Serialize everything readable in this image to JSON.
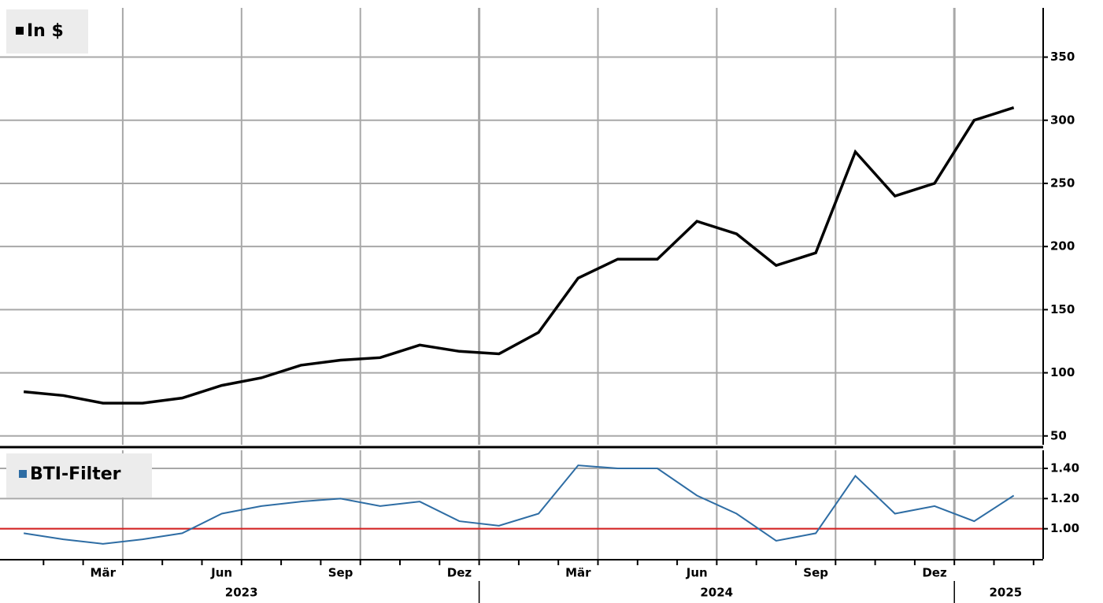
{
  "chart_data": [
    {
      "type": "line",
      "xlim": [
        "2023-01",
        "2025-02"
      ],
      "x": [
        "2023-01",
        "2023-02",
        "2023-03",
        "2023-04",
        "2023-05",
        "2023-06",
        "2023-07",
        "2023-08",
        "2023-09",
        "2023-10",
        "2023-11",
        "2023-12",
        "2024-01",
        "2024-02",
        "2024-03",
        "2024-04",
        "2024-05",
        "2024-06",
        "2024-07",
        "2024-08",
        "2024-09",
        "2024-10",
        "2024-11",
        "2024-12",
        "2025-01",
        "2025-02"
      ],
      "series": [
        {
          "name": "In $",
          "color": "#000000",
          "values": [
            85,
            82,
            76,
            76,
            80,
            90,
            96,
            106,
            110,
            112,
            122,
            117,
            115,
            132,
            175,
            190,
            190,
            220,
            210,
            185,
            195,
            275,
            240,
            250,
            300,
            310
          ]
        }
      ],
      "ylim": [
        43,
        389
      ],
      "yticks": [
        50,
        100,
        150,
        200,
        250,
        300,
        350
      ],
      "grid": true
    },
    {
      "type": "line",
      "xlim": [
        "2023-01",
        "2025-02"
      ],
      "x": [
        "2023-01",
        "2023-02",
        "2023-03",
        "2023-04",
        "2023-05",
        "2023-06",
        "2023-07",
        "2023-08",
        "2023-09",
        "2023-10",
        "2023-11",
        "2023-12",
        "2024-01",
        "2024-02",
        "2024-03",
        "2024-04",
        "2024-05",
        "2024-06",
        "2024-07",
        "2024-08",
        "2024-09",
        "2024-10",
        "2024-11",
        "2024-12",
        "2025-01",
        "2025-02"
      ],
      "series": [
        {
          "name": "BTI-Filter",
          "color": "#2e6da4",
          "values": [
            0.97,
            0.93,
            0.9,
            0.93,
            0.97,
            1.1,
            1.15,
            1.18,
            1.2,
            1.15,
            1.18,
            1.05,
            1.02,
            1.1,
            1.42,
            1.4,
            1.4,
            1.22,
            1.1,
            0.92,
            0.97,
            1.35,
            1.1,
            1.15,
            1.05,
            1.22
          ]
        }
      ],
      "reference_line": {
        "value": 1,
        "color": "#d62020"
      },
      "ylim": [
        0.8,
        1.52
      ],
      "yticks": [
        {
          "value": 1,
          "label": "1.00"
        },
        {
          "value": 1.2,
          "label": "1.20"
        },
        {
          "value": 1.4,
          "label": "1.40"
        }
      ],
      "grid": true,
      "month_labels": [
        {
          "value": "2023-03",
          "label": "Mär"
        },
        {
          "value": "2023-06",
          "label": "Jun"
        },
        {
          "value": "2023-09",
          "label": "Sep"
        },
        {
          "value": "2023-12",
          "label": "Dez"
        },
        {
          "value": "2024-03",
          "label": "Mär"
        },
        {
          "value": "2024-06",
          "label": "Jun"
        },
        {
          "value": "2024-09",
          "label": "Sep"
        },
        {
          "value": "2024-12",
          "label": "Dez"
        }
      ],
      "year_labels": [
        {
          "value": "2023-06",
          "label": "2023"
        },
        {
          "value": "2024-06",
          "label": "2024"
        },
        {
          "value": "2025-01",
          "label": "2025"
        }
      ]
    }
  ]
}
